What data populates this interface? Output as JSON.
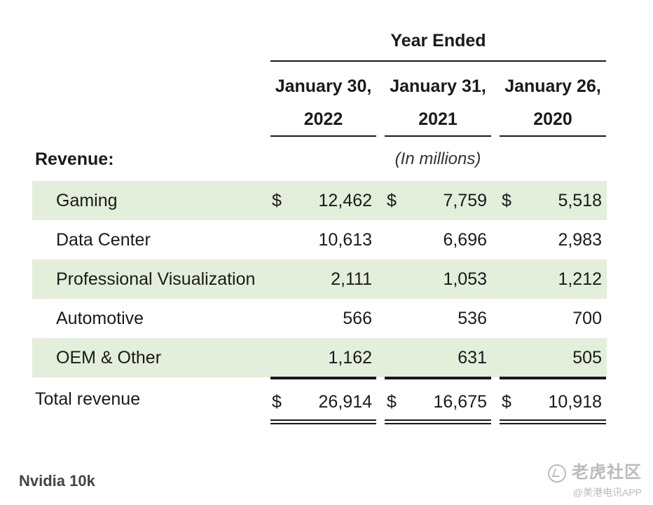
{
  "table": {
    "super_header": "Year Ended",
    "columns": [
      {
        "line1": "January 30,",
        "line2": "2022"
      },
      {
        "line1": "January 31,",
        "line2": "2021"
      },
      {
        "line1": "January 26,",
        "line2": "2020"
      }
    ],
    "section_label": "Revenue:",
    "units_note": "(In millions)",
    "currency_symbol": "$",
    "rows": [
      {
        "label": "Gaming",
        "shaded": true,
        "show_currency": true,
        "values": [
          "12,462",
          "7,759",
          "5,518"
        ]
      },
      {
        "label": "Data Center",
        "shaded": false,
        "show_currency": false,
        "values": [
          "10,613",
          "6,696",
          "2,983"
        ]
      },
      {
        "label": "Professional Visualization",
        "shaded": true,
        "show_currency": false,
        "values": [
          "2,111",
          "1,053",
          "1,212"
        ]
      },
      {
        "label": "Automotive",
        "shaded": false,
        "show_currency": false,
        "values": [
          "566",
          "536",
          "700"
        ]
      },
      {
        "label": "OEM & Other",
        "shaded": true,
        "show_currency": false,
        "values": [
          "1,162",
          "631",
          "505"
        ]
      }
    ],
    "total": {
      "label": "Total revenue",
      "values": [
        "26,914",
        "16,675",
        "10,918"
      ]
    }
  },
  "caption": "Nvidia 10k",
  "watermark": {
    "brand": "老虎社区",
    "source": "@美港电讯APP"
  },
  "colors": {
    "row_shade": "#e3eedb",
    "rule": "#1a1a1a",
    "watermark": "#bbbbbb"
  }
}
